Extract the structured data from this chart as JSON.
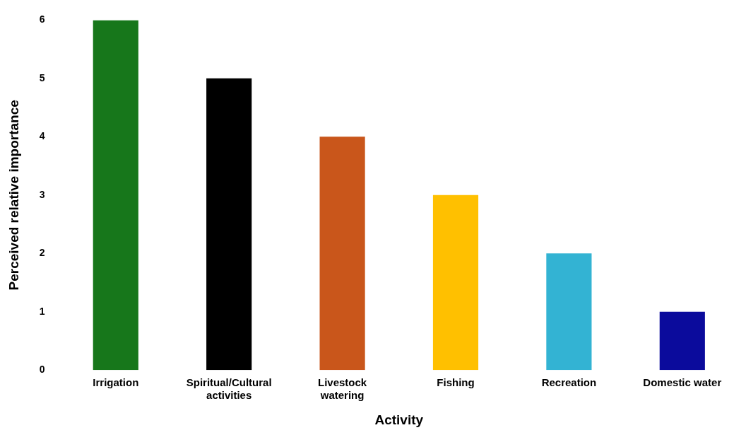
{
  "chart_data": {
    "type": "bar",
    "xlabel": "Activity",
    "ylabel": "Perceived relative importance",
    "categories": [
      "Irrigation",
      "Spiritual/Cultural activities",
      "Livestock watering",
      "Fishing",
      "Recreation",
      "Domestic water"
    ],
    "values": [
      6,
      5,
      4,
      3,
      2,
      1
    ],
    "colors": [
      "#17771b",
      "#000000",
      "#c9561b",
      "#ffc000",
      "#33b3d3",
      "#0b0b9c"
    ],
    "ylim": [
      0,
      6
    ],
    "yticks": [
      0,
      1,
      2,
      3,
      4,
      5,
      6
    ],
    "grid": false,
    "legend": false
  }
}
